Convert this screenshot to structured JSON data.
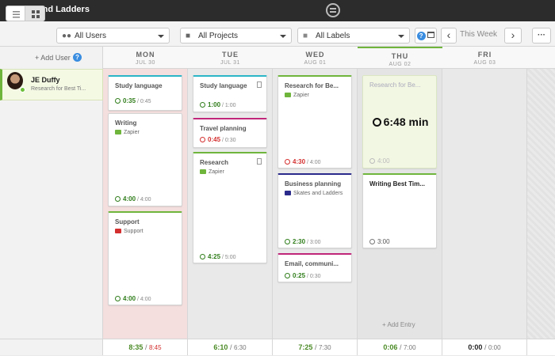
{
  "window": {
    "title": "Skates and Ladders"
  },
  "toolbar": {
    "users_filter": "All Users",
    "projects_filter": "All Projects",
    "labels_filter": "All Labels",
    "period_label": "This Week",
    "help_glyph": "?",
    "prev_glyph": "‹",
    "next_glyph": "›",
    "more_glyph": "···"
  },
  "sidebar": {
    "add_user_label": "+ Add User",
    "user": {
      "name": "JE Duffy",
      "subtitle": "Research for Best Ti..."
    }
  },
  "days": [
    {
      "name": "MON",
      "date": "JUL 30",
      "total": "8:35",
      "planned": "8:45",
      "planned_over": true
    },
    {
      "name": "TUE",
      "date": "JUL 31",
      "total": "6:10",
      "planned": "6:30",
      "planned_over": false
    },
    {
      "name": "WED",
      "date": "AUG 01",
      "total": "7:25",
      "planned": "7:30",
      "planned_over": false
    },
    {
      "name": "THU",
      "date": "AUG 02",
      "total": "0:06",
      "planned": "7:00",
      "planned_over": false
    },
    {
      "name": "FRI",
      "date": "AUG 03",
      "total": "0:00",
      "planned": "0:00",
      "planned_over": false
    }
  ],
  "cards": {
    "mon": [
      {
        "title": "Study language",
        "project": "",
        "actual": "0:35",
        "planned": "0:45"
      },
      {
        "title": "Writing",
        "project": "Zapier",
        "actual": "4:00",
        "planned": "4:00"
      },
      {
        "title": "Support",
        "project": "Support",
        "actual": "4:00",
        "planned": "4:00"
      }
    ],
    "tue": [
      {
        "title": "Study language",
        "project": "",
        "actual": "1:00",
        "planned": "1:00"
      },
      {
        "title": "Travel planning",
        "project": "",
        "actual": "0:45",
        "planned": "0:30"
      },
      {
        "title": "Research",
        "project": "Zapier",
        "actual": "4:25",
        "planned": "5:00"
      }
    ],
    "wed": [
      {
        "title": "Research for Be...",
        "project": "Zapier",
        "actual": "4:30",
        "planned": "4:00"
      },
      {
        "title": "Business planning",
        "project": "Skates and Ladders",
        "actual": "2:30",
        "planned": "3:00"
      },
      {
        "title": "Email, communi...",
        "project": "",
        "actual": "0:25",
        "planned": "0:30"
      }
    ],
    "thu": [
      {
        "title": "Research for Be...",
        "timer": "6:48 min",
        "planned": "4:00"
      },
      {
        "title": "Writing Best Tim...",
        "planned": "3:00"
      }
    ]
  },
  "thu_add_entry": "+ Add Entry",
  "colors": {
    "green": "#6fb53c",
    "red": "#d42f2f",
    "teal": "#2bb5c7",
    "magenta": "#c0267a",
    "navy": "#2a2a8c",
    "pink_bg": "#f4dede"
  },
  "icons": [
    "list-view-icon",
    "grid-view-icon",
    "users-icon",
    "folder-icon",
    "label-icon",
    "help-icon",
    "calendar-icon",
    "chevron-left-icon",
    "chevron-right-icon",
    "more-icon",
    "document-icon",
    "clock-icon"
  ]
}
